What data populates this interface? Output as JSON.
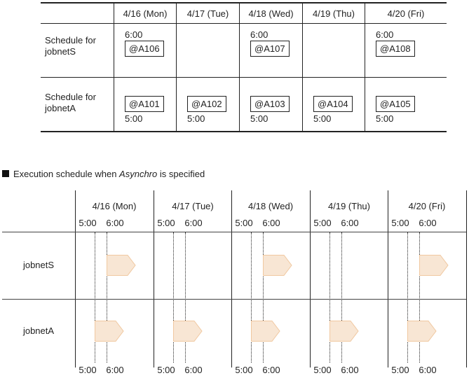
{
  "days": [
    "4/16 (Mon)",
    "4/17 (Tue)",
    "4/18 (Wed)",
    "4/19 (Thu)",
    "4/20 (Fri)"
  ],
  "table": {
    "rows": [
      {
        "label": "Schedule for jobnetS",
        "cells": [
          {
            "time": "6:00",
            "job": "@A106"
          },
          null,
          {
            "time": "6:00",
            "job": "@A107"
          },
          null,
          {
            "time": "6:00",
            "job": "@A108"
          }
        ]
      },
      {
        "label": "Schedule for jobnetA",
        "cells": [
          {
            "time": "5:00",
            "job": "@A101"
          },
          {
            "time": "5:00",
            "job": "@A102"
          },
          {
            "time": "5:00",
            "job": "@A103"
          },
          {
            "time": "5:00",
            "job": "@A104"
          },
          {
            "time": "5:00",
            "job": "@A105"
          }
        ]
      }
    ]
  },
  "section_title": {
    "prefix": "Execution schedule when ",
    "emphasis": "Asynchro",
    "suffix": " is specified"
  },
  "timeline": {
    "times": [
      "5:00",
      "6:00"
    ],
    "rows": [
      {
        "label": "jobnetS",
        "start": "6:00"
      },
      {
        "label": "jobnetA",
        "start": "5:00"
      }
    ],
    "bar_fill": "#f8e6d4",
    "bar_stroke": "#f0c8a0"
  }
}
